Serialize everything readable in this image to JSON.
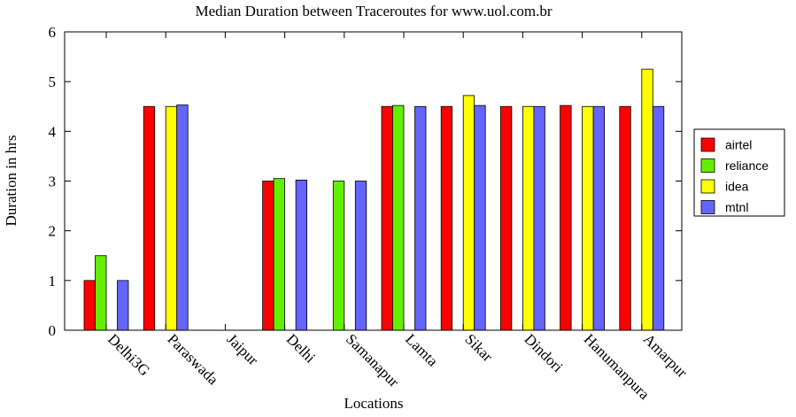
{
  "chart_data": {
    "type": "bar",
    "title": "Median Duration between Traceroutes for www.uol.com.br",
    "xlabel": "Locations",
    "ylabel": "Duration in hrs",
    "ylim": [
      0,
      6
    ],
    "yticks": [
      0,
      1,
      2,
      3,
      4,
      5,
      6
    ],
    "grid": false,
    "legend_position": "right",
    "categories": [
      "Delhi3G",
      "Paraswada",
      "Jaipur",
      "Delhi",
      "Samanapur",
      "Lamta",
      "Sikar",
      "Dindori",
      "Hanumanpura",
      "Amarpur"
    ],
    "series": [
      {
        "name": "airtel",
        "color": "#ff0000",
        "values": [
          1.0,
          4.5,
          null,
          3.0,
          null,
          4.5,
          4.5,
          4.5,
          4.52,
          4.5
        ]
      },
      {
        "name": "reliance",
        "color": "#66ee00",
        "values": [
          1.5,
          null,
          null,
          3.05,
          3.0,
          4.52,
          null,
          null,
          null,
          null
        ]
      },
      {
        "name": "idea",
        "color": "#ffff00",
        "values": [
          null,
          4.5,
          null,
          null,
          null,
          null,
          4.72,
          4.5,
          4.5,
          5.25
        ]
      },
      {
        "name": "mtnl",
        "color": "#6464ff",
        "values": [
          1.0,
          4.53,
          null,
          3.02,
          3.0,
          4.5,
          4.52,
          4.5,
          4.5,
          4.5
        ]
      }
    ]
  }
}
